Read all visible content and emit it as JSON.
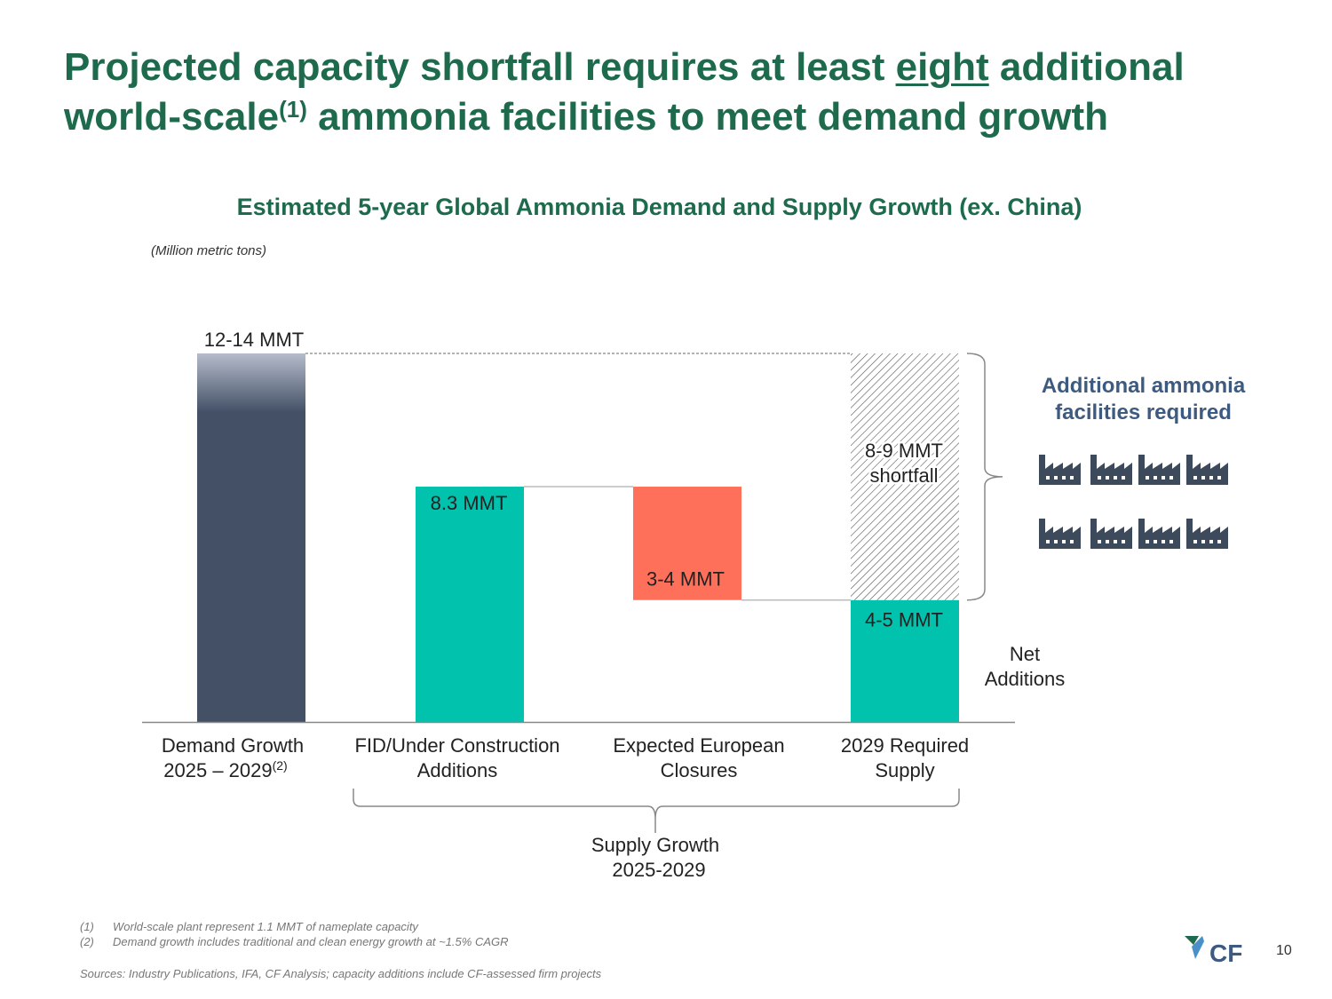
{
  "title": {
    "part1": "Projected capacity shortfall requires at least ",
    "emph": "eight",
    "part2": " additional",
    "part3": "world-scale",
    "sup": "(1)",
    "part4": " ammonia facilities to meet demand growth"
  },
  "subtitle": "Estimated 5-year Global Ammonia Demand and Supply Growth (ex. China)",
  "units": "(Million metric tons)",
  "chart_data": {
    "type": "bar",
    "subtype": "waterfall",
    "title": "Estimated 5-year Global Ammonia Demand and Supply Growth (ex. China)",
    "ylabel": "(Million metric tons)",
    "ylim": [
      0,
      14.5
    ],
    "categories": [
      {
        "line1": "Demand Growth",
        "line2": "2025 – 2029",
        "sup": "(2)"
      },
      {
        "line1": "FID/Under Construction",
        "line2": "Additions",
        "sup": ""
      },
      {
        "line1": "Expected European",
        "line2": "Closures",
        "sup": ""
      },
      {
        "line1": "2029 Required",
        "line2": "Supply",
        "sup": ""
      }
    ],
    "bars": [
      {
        "label": "12-14 MMT",
        "base": 0,
        "top": 13.0,
        "color": "#435066",
        "kind": "demand"
      },
      {
        "label": "8.3 MMT",
        "base": 0,
        "top": 8.3,
        "color": "#00c2ad",
        "kind": "increase"
      },
      {
        "label": "3-4 MMT",
        "base": 4.3,
        "top": 8.3,
        "color": "#ff705a",
        "kind": "decrease"
      },
      {
        "label": "4-5 MMT",
        "base": 0,
        "top": 4.3,
        "color": "#00c2ad",
        "kind": "net"
      },
      {
        "label_line1": "8-9 MMT",
        "label_line2": "shortfall",
        "base": 4.3,
        "top": 13.0,
        "color": "#ffffff",
        "kind": "shortfall"
      }
    ],
    "annotations": {
      "net_additions_line1": "Net",
      "net_additions_line2": "Additions",
      "supply_growth_line1": "Supply Growth",
      "supply_growth_line2": "2025-2029"
    }
  },
  "side_panel": {
    "title_line1": "Additional ammonia",
    "title_line2": "facilities required",
    "facility_count": 8,
    "icon": "factory-icon",
    "icon_color": "#3d4a5c"
  },
  "footnotes": [
    {
      "num": "(1)",
      "text": "World-scale plant represent 1.1 MMT of nameplate capacity"
    },
    {
      "num": "(2)",
      "text": "Demand growth includes traditional and clean energy growth at ~1.5% CAGR"
    }
  ],
  "sources": "Sources: Industry Publications, IFA, CF Analysis; capacity additions include CF-assessed firm projects",
  "logo_text": "CF",
  "page_number": "10"
}
